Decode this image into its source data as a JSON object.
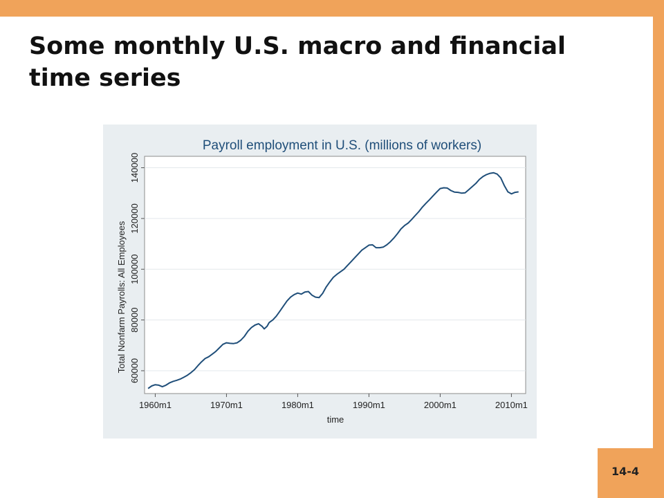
{
  "slide": {
    "title": "Some monthly U.S. macro and financial time series",
    "page_number": "14-4"
  },
  "colors": {
    "accent": "#F0A35A",
    "chart_background": "#E9EEF1",
    "plot_background": "#FFFFFF",
    "line": "#1F4E79",
    "title_text": "#1F4E79"
  },
  "chart_data": {
    "type": "line",
    "title": "Payroll employment in U.S. (millions of workers)",
    "xlabel": "time",
    "ylabel": "Total Nonfarm Payrolls: All Employees",
    "xlim": [
      1958.5,
      2012.0
    ],
    "ylim": [
      51000,
      144500
    ],
    "x_ticks": [
      1960,
      1970,
      1980,
      1990,
      2000,
      2010
    ],
    "x_tick_labels": [
      "1960m1",
      "1970m1",
      "1980m1",
      "1990m1",
      "2000m1",
      "2010m1"
    ],
    "y_ticks": [
      60000,
      80000,
      100000,
      120000,
      140000
    ],
    "y_tick_labels": [
      "60000",
      "80000",
      "100000",
      "120000",
      "140000"
    ],
    "grid": "horizontal",
    "series": [
      {
        "x": [
          1959.0,
          1959.5,
          1960.0,
          1960.5,
          1961.0,
          1961.5,
          1962.0,
          1962.5,
          1963.0,
          1963.5,
          1964.0,
          1964.5,
          1965.0,
          1965.5,
          1966.0,
          1966.5,
          1967.0,
          1967.5,
          1968.0,
          1968.5,
          1969.0,
          1969.5,
          1970.0,
          1970.5,
          1971.0,
          1971.5,
          1972.0,
          1972.5,
          1973.0,
          1973.5,
          1974.0,
          1974.5,
          1975.0,
          1975.3,
          1975.7,
          1976.0,
          1976.5,
          1977.0,
          1977.5,
          1978.0,
          1978.5,
          1979.0,
          1979.5,
          1980.0,
          1980.5,
          1981.0,
          1981.5,
          1982.0,
          1982.5,
          1983.0,
          1983.5,
          1984.0,
          1984.5,
          1985.0,
          1985.5,
          1986.0,
          1986.5,
          1987.0,
          1987.5,
          1988.0,
          1988.5,
          1989.0,
          1989.5,
          1990.0,
          1990.5,
          1991.0,
          1991.5,
          1992.0,
          1992.5,
          1993.0,
          1993.5,
          1994.0,
          1994.5,
          1995.0,
          1995.5,
          1996.0,
          1996.5,
          1997.0,
          1997.5,
          1998.0,
          1998.5,
          1999.0,
          1999.5,
          2000.0,
          2000.5,
          2001.0,
          2001.5,
          2002.0,
          2002.5,
          2003.0,
          2003.5,
          2004.0,
          2004.5,
          2005.0,
          2005.5,
          2006.0,
          2006.5,
          2007.0,
          2007.5,
          2008.0,
          2008.5,
          2009.0,
          2009.5,
          2010.0,
          2010.5,
          2011.0
        ],
        "y": [
          53000,
          54000,
          54500,
          54300,
          53700,
          54300,
          55200,
          55800,
          56200,
          56700,
          57400,
          58200,
          59200,
          60400,
          62000,
          63500,
          64800,
          65500,
          66500,
          67600,
          69000,
          70400,
          71000,
          70800,
          70700,
          71000,
          72000,
          73500,
          75500,
          77000,
          78000,
          78500,
          77500,
          76500,
          77500,
          79000,
          80000,
          81500,
          83500,
          85500,
          87500,
          89000,
          90000,
          90600,
          90200,
          91000,
          91200,
          89800,
          89000,
          88800,
          90500,
          93000,
          95000,
          96800,
          98000,
          99000,
          100000,
          101500,
          103000,
          104500,
          106000,
          107500,
          108500,
          109500,
          109600,
          108500,
          108500,
          108700,
          109600,
          110800,
          112300,
          114000,
          115900,
          117200,
          118200,
          119600,
          121200,
          122700,
          124500,
          126000,
          127400,
          128900,
          130400,
          131800,
          132100,
          132000,
          131000,
          130400,
          130300,
          130000,
          130100,
          131300,
          132600,
          133800,
          135400,
          136500,
          137300,
          137800,
          138000,
          137500,
          136000,
          133000,
          130500,
          129700,
          130300,
          130500
        ]
      }
    ]
  }
}
